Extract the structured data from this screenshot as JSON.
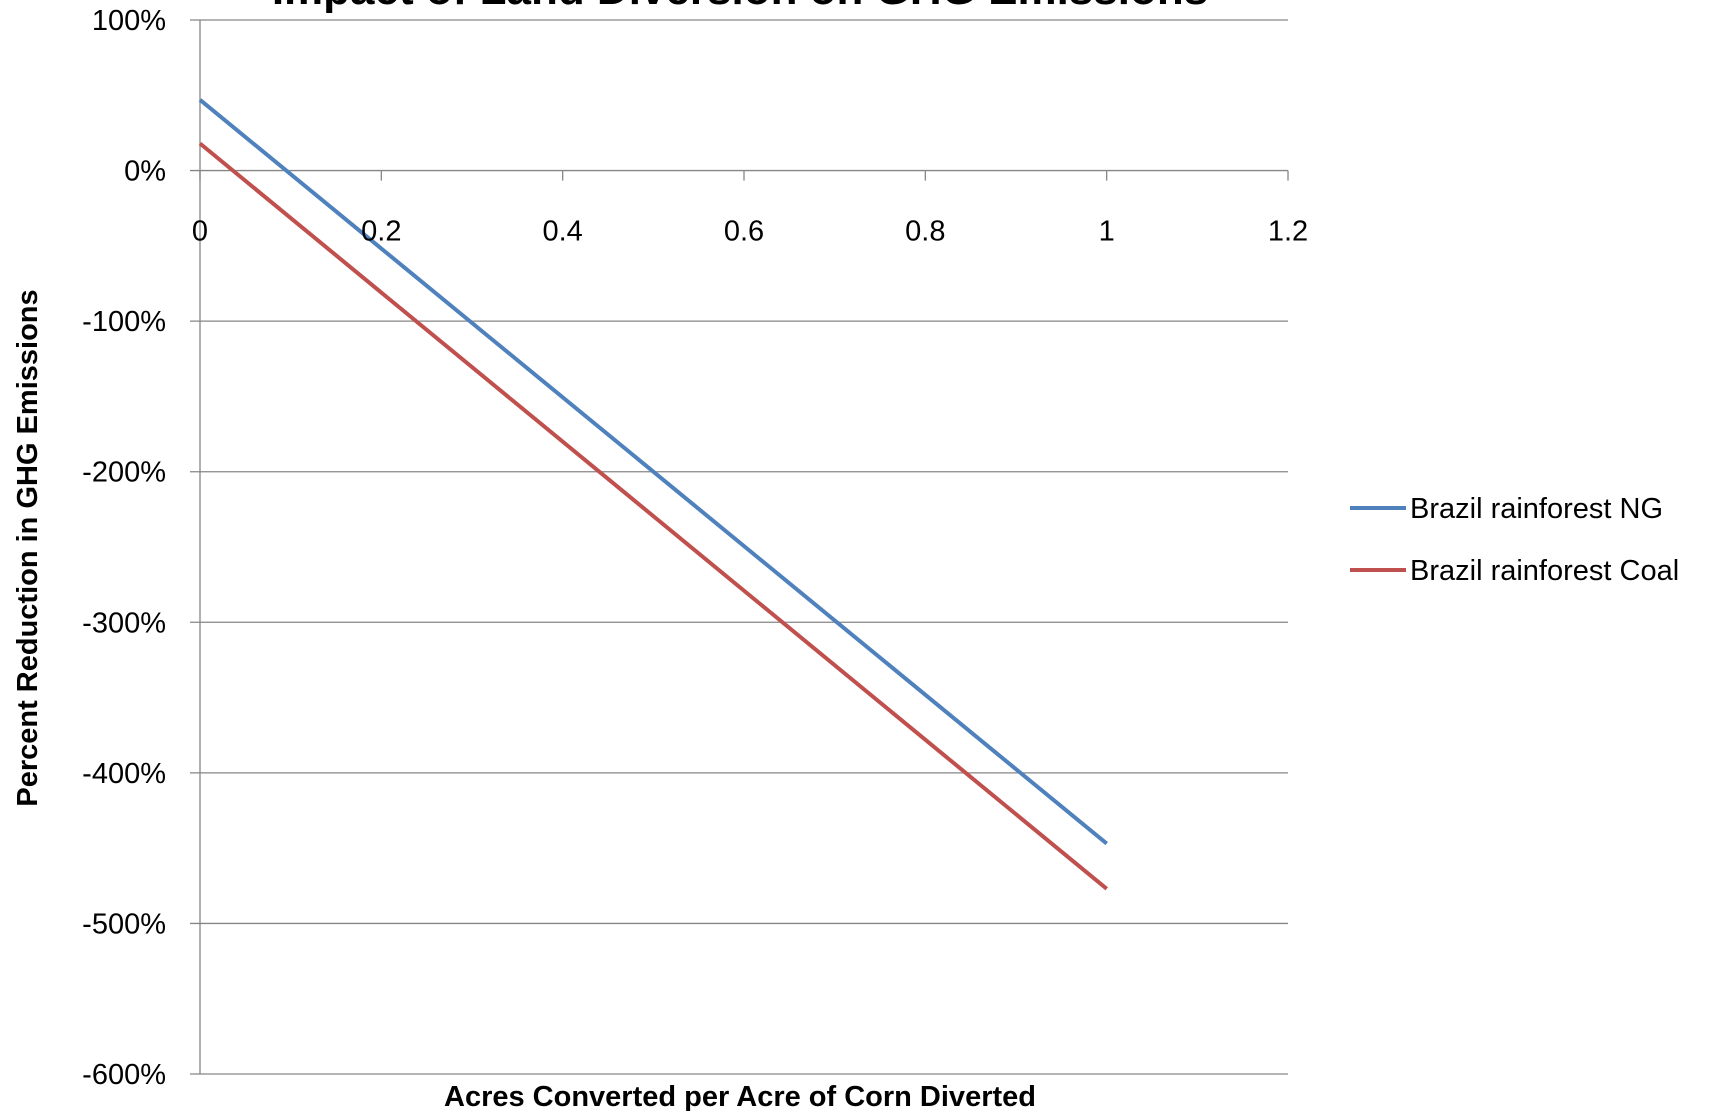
{
  "chart_data": {
    "type": "line",
    "title": "Impact of Land Diversion on GHG Emissions",
    "xlabel": "Acres Converted per Acre of Corn Diverted",
    "ylabel": "Percent Reduction in GHG Emissions",
    "xlim": [
      0,
      1.2
    ],
    "ylim": [
      -600,
      100
    ],
    "x_ticks": [
      0,
      0.2,
      0.4,
      0.6,
      0.8,
      1,
      1.2
    ],
    "x_tick_labels": [
      "0",
      "0.2",
      "0.4",
      "0.6",
      "0.8",
      "1",
      "1.2"
    ],
    "y_ticks": [
      100,
      0,
      -100,
      -200,
      -300,
      -400,
      -500,
      -600
    ],
    "y_tick_labels": [
      "100%",
      "0%",
      "-100%",
      "-200%",
      "-300%",
      "-400%",
      "-500%",
      "-600%"
    ],
    "y_unit": "%",
    "grid": "horizontal",
    "legend_position": "right",
    "series": [
      {
        "name": "Brazil rainforest NG",
        "color": "#4F81BD",
        "x": [
          0,
          1
        ],
        "y": [
          47,
          -447
        ]
      },
      {
        "name": "Brazil rainforest Coal",
        "color": "#C0504D",
        "x": [
          0,
          1
        ],
        "y": [
          18,
          -477
        ]
      }
    ]
  }
}
